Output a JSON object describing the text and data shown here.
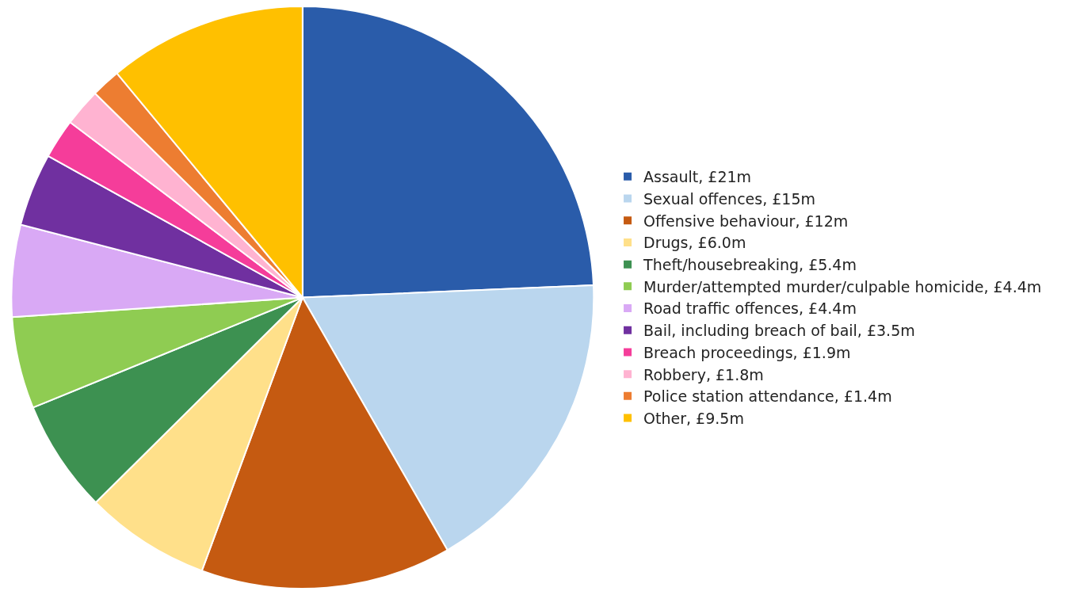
{
  "chart_data": {
    "type": "pie",
    "categories": [
      "Assault, £21m",
      "Sexual offences, £15m",
      "Offensive behaviour, £12m",
      "Drugs, £6.0m",
      "Theft/housebreaking, £5.4m",
      "Murder/attempted murder/culpable homicide, £4.4m",
      "Road traffic offences, £4.4m",
      "Bail, including breach of bail, £3.5m",
      "Breach proceedings, £1.9m",
      "Robbery, £1.8m",
      "Police station attendance, £1.4m",
      "Other, £9.5m"
    ],
    "values": [
      21,
      15,
      12,
      6.0,
      5.4,
      4.4,
      4.4,
      3.5,
      1.9,
      1.8,
      1.4,
      9.5
    ],
    "colors": [
      "#2a5caa",
      "#bad6ee",
      "#c55a11",
      "#ffe08a",
      "#3d9151",
      "#8fcc52",
      "#d9a9f5",
      "#7030a0",
      "#f53d9a",
      "#ffb3d1",
      "#ed7d31",
      "#ffc000"
    ],
    "legend": "right"
  }
}
